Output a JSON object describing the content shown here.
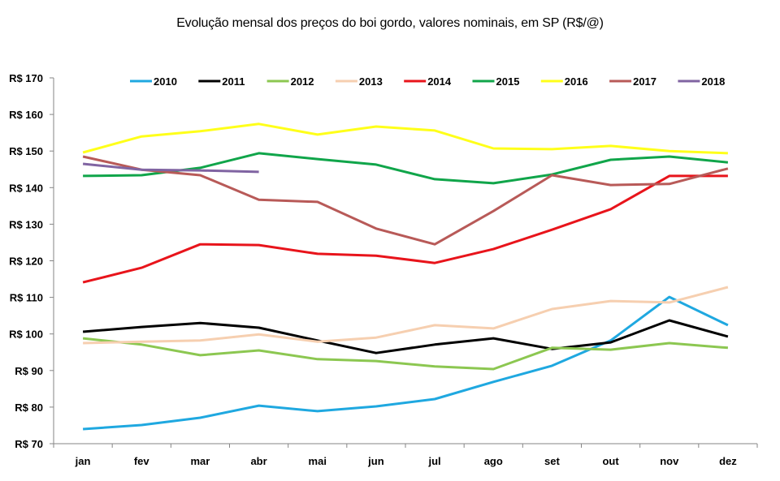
{
  "chart_data": {
    "type": "line",
    "title": "Evolução mensal dos preços do boi gordo, valores nominais, em SP (R$/@)",
    "xlabel": "",
    "ylabel": "",
    "ylim": [
      70,
      170
    ],
    "y_ticks": [
      70,
      80,
      90,
      100,
      110,
      120,
      130,
      140,
      150,
      160,
      170
    ],
    "y_tick_prefix": "R$ ",
    "grid": false,
    "legend_position": "top",
    "categories": [
      "jan",
      "fev",
      "mar",
      "abr",
      "mai",
      "jun",
      "jul",
      "ago",
      "set",
      "out",
      "nov",
      "dez"
    ],
    "series": [
      {
        "name": "2010",
        "color": "#1fa8e0",
        "values": [
          74.0,
          75.1,
          77.1,
          80.4,
          78.9,
          80.2,
          82.2,
          86.9,
          91.3,
          98.2,
          110.1,
          102.4
        ]
      },
      {
        "name": "2011",
        "color": "#000000",
        "values": [
          100.6,
          101.9,
          103.0,
          101.7,
          98.2,
          94.8,
          97.1,
          98.8,
          95.9,
          97.7,
          103.7,
          99.3
        ]
      },
      {
        "name": "2012",
        "color": "#8cc751",
        "values": [
          98.8,
          97.1,
          94.2,
          95.5,
          93.1,
          92.6,
          91.1,
          90.4,
          96.2,
          95.7,
          97.5,
          96.2
        ]
      },
      {
        "name": "2013",
        "color": "#f6cfb0",
        "values": [
          97.5,
          97.9,
          98.2,
          99.9,
          97.9,
          99.0,
          102.4,
          101.5,
          106.8,
          109.0,
          108.6,
          112.8
        ]
      },
      {
        "name": "2014",
        "color": "#e8141b",
        "values": [
          114.1,
          118.1,
          124.5,
          124.3,
          121.9,
          121.4,
          119.4,
          123.2,
          128.5,
          134.1,
          143.2,
          143.2
        ]
      },
      {
        "name": "2015",
        "color": "#10a54a",
        "values": [
          143.2,
          143.4,
          145.4,
          149.4,
          147.8,
          146.3,
          142.3,
          141.2,
          143.6,
          147.6,
          148.5,
          146.9
        ]
      },
      {
        "name": "2016",
        "color": "#ffff1a",
        "values": [
          149.6,
          154.0,
          155.4,
          157.4,
          154.5,
          156.7,
          155.6,
          150.7,
          150.5,
          151.4,
          150.0,
          149.4
        ]
      },
      {
        "name": "2017",
        "color": "#b85a58",
        "values": [
          148.5,
          144.9,
          143.4,
          136.7,
          136.1,
          128.8,
          124.5,
          133.6,
          143.4,
          140.7,
          141.0,
          145.2
        ]
      },
      {
        "name": "2018",
        "color": "#8064a2",
        "values": [
          146.5,
          144.9,
          144.7,
          144.3
        ]
      }
    ]
  }
}
